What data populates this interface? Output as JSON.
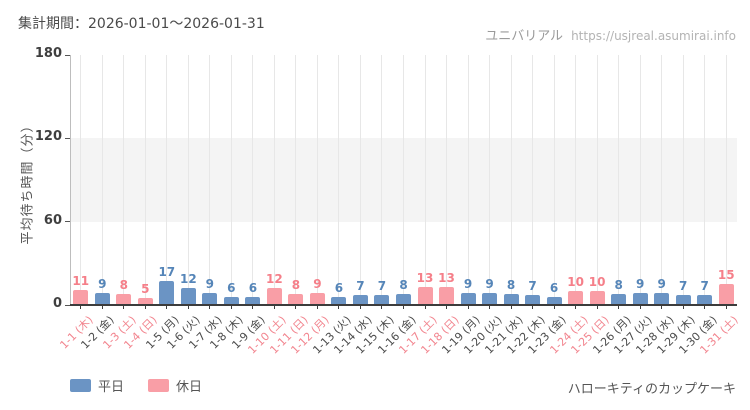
{
  "header": {
    "title": "集計期間：2026-01-01～2026-01-31",
    "brand": "ユニバリアル",
    "url": "https://usjreal.asumirai.info"
  },
  "footer": {
    "attraction": "ハローキティのカップケーキ"
  },
  "legend": {
    "weekday": "平日",
    "holiday": "休日"
  },
  "colors": {
    "weekday_bar": "#6b94c4",
    "holiday_bar": "#f99ea6",
    "weekday_value_label": "#5585b8",
    "holiday_value_label": "#f57f89",
    "weekday_axis_label": "#4a4a4a",
    "holiday_axis_label": "#f2848e",
    "band": "#f4f4f4",
    "grid": "#e7e7e7",
    "axis": "#3c3c3c"
  },
  "chart_data": {
    "type": "bar",
    "title": "集計期間：2026-01-01～2026-01-31",
    "xlabel": "",
    "ylabel": "平均待ち時間（分）",
    "ylim": [
      0,
      180
    ],
    "yticks": [
      0,
      60,
      120,
      180
    ],
    "shaded_band_y": [
      60,
      120
    ],
    "grid": "vertical",
    "legend_position": "bottom-left",
    "categories": [
      "1-1 (木)",
      "1-2 (金)",
      "1-3 (土)",
      "1-4 (日)",
      "1-5 (月)",
      "1-6 (火)",
      "1-7 (水)",
      "1-8 (木)",
      "1-9 (金)",
      "1-10 (土)",
      "1-11 (日)",
      "1-12 (月)",
      "1-13 (火)",
      "1-14 (水)",
      "1-15 (木)",
      "1-16 (金)",
      "1-17 (土)",
      "1-18 (日)",
      "1-19 (月)",
      "1-20 (火)",
      "1-21 (水)",
      "1-22 (木)",
      "1-23 (金)",
      "1-24 (土)",
      "1-25 (日)",
      "1-26 (月)",
      "1-27 (火)",
      "1-28 (水)",
      "1-29 (木)",
      "1-30 (金)",
      "1-31 (土)"
    ],
    "values": [
      11,
      9,
      8,
      5,
      17,
      12,
      9,
      6,
      6,
      12,
      8,
      9,
      6,
      7,
      7,
      8,
      13,
      13,
      9,
      9,
      8,
      7,
      6,
      10,
      10,
      8,
      9,
      9,
      7,
      7,
      15
    ],
    "day_type": [
      "holiday",
      "weekday",
      "holiday",
      "holiday",
      "weekday",
      "weekday",
      "weekday",
      "weekday",
      "weekday",
      "holiday",
      "holiday",
      "holiday",
      "weekday",
      "weekday",
      "weekday",
      "weekday",
      "holiday",
      "holiday",
      "weekday",
      "weekday",
      "weekday",
      "weekday",
      "weekday",
      "holiday",
      "holiday",
      "weekday",
      "weekday",
      "weekday",
      "weekday",
      "weekday",
      "holiday"
    ],
    "series": [
      {
        "name": "平日",
        "key": "weekday"
      },
      {
        "name": "休日",
        "key": "holiday"
      }
    ]
  }
}
